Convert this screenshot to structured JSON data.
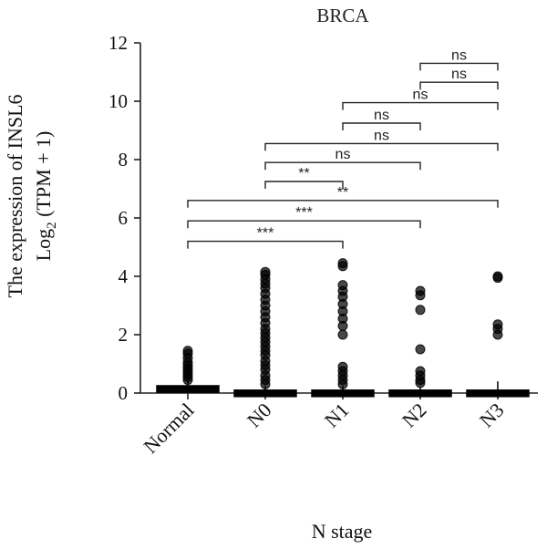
{
  "chart_data": {
    "type": "box",
    "title": "BRCA",
    "xlabel": "N stage",
    "ylabel_line1": "The expression of INSL6",
    "ylabel_line2_prefix": "Log",
    "ylabel_line2_sub": "2",
    "ylabel_line2_suffix": " (TPM + 1)",
    "ylim": [
      0,
      12
    ],
    "yticks": [
      "0",
      "2",
      "4",
      "6",
      "8",
      "10",
      "12"
    ],
    "categories": [
      "Normal",
      "N0",
      "N1",
      "N2",
      "N3"
    ],
    "boxes": [
      {
        "q1": 0.08,
        "median": 0.15,
        "q3": 0.25,
        "whisker_low": 0.02,
        "whisker_high": 0.4,
        "outliers": [
          0.45,
          0.55,
          0.65,
          0.75,
          0.85,
          0.95,
          1.05,
          1.2,
          1.35,
          1.45
        ]
      },
      {
        "q1": 0.0,
        "median": 0.05,
        "q3": 0.1,
        "whisker_low": 0.0,
        "whisker_high": 0.25,
        "outliers": [
          0.3,
          0.45,
          0.6,
          0.8,
          0.95,
          1.1,
          1.3,
          1.45,
          1.6,
          1.75,
          1.9,
          2.05,
          2.2,
          2.4,
          2.6,
          2.8,
          3.0,
          3.2,
          3.4,
          3.6,
          3.75,
          3.9,
          4.05,
          4.15
        ]
      },
      {
        "q1": 0.0,
        "median": 0.05,
        "q3": 0.1,
        "whisker_low": 0.0,
        "whisker_high": 0.25,
        "outliers": [
          0.3,
          0.45,
          0.6,
          0.75,
          0.9,
          2.0,
          2.3,
          2.55,
          2.8,
          3.05,
          3.3,
          3.5,
          3.7,
          4.35,
          4.45
        ]
      },
      {
        "q1": 0.0,
        "median": 0.05,
        "q3": 0.1,
        "whisker_low": 0.0,
        "whisker_high": 0.2,
        "outliers": [
          0.35,
          0.45,
          0.6,
          0.75,
          1.5,
          2.85,
          3.35,
          3.5
        ]
      },
      {
        "q1": 0.0,
        "median": 0.05,
        "q3": 0.1,
        "whisker_low": 0.0,
        "whisker_high": 0.4,
        "outliers": [
          2.0,
          2.2,
          2.35,
          3.95,
          4.0
        ]
      }
    ],
    "comparisons": [
      {
        "from": "Normal",
        "to": "N1",
        "y": 5.2,
        "label": "***"
      },
      {
        "from": "Normal",
        "to": "N2",
        "y": 5.9,
        "label": "***"
      },
      {
        "from": "Normal",
        "to": "N3",
        "y": 6.6,
        "label": "**"
      },
      {
        "from": "N0",
        "to": "N1",
        "y": 7.25,
        "label": "**"
      },
      {
        "from": "N0",
        "to": "N2",
        "y": 7.9,
        "label": "ns"
      },
      {
        "from": "N0",
        "to": "N3",
        "y": 8.55,
        "label": "ns"
      },
      {
        "from": "N1",
        "to": "N2",
        "y": 9.25,
        "label": "ns"
      },
      {
        "from": "N1",
        "to": "N3",
        "y": 9.95,
        "label": "ns"
      },
      {
        "from": "N2",
        "to": "N3",
        "y": 10.65,
        "label": "ns"
      },
      {
        "from": "N2",
        "to": "N3",
        "y": 11.3,
        "label": "ns"
      }
    ],
    "colors": {
      "box": "#000000",
      "outlier": "#000000"
    },
    "grid": false,
    "legend": "none"
  }
}
